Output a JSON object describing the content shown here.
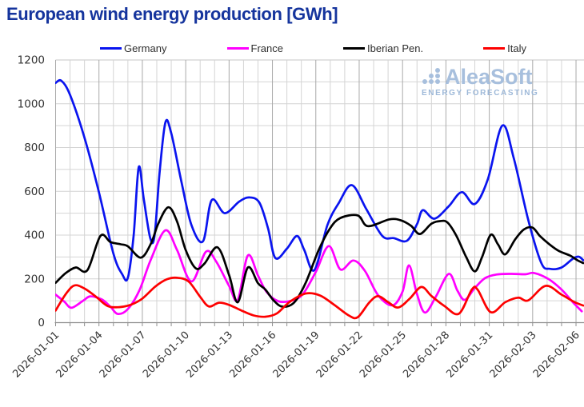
{
  "title": "European wind energy production [GWh]",
  "watermark": {
    "name": "AleaSoft",
    "tagline": "ENERGY FORECASTING",
    "logo_icon": "aleasoft-dots-logo",
    "color": "#a7bfdd"
  },
  "colors": {
    "title": "#15349d",
    "grid_minor": "#d4d4d4",
    "grid_major_x": "#a9a9a9",
    "grid_top": "#c4c4c4",
    "axis_line": "#8f8f8f",
    "tick_label": "#333333"
  },
  "chart_data": {
    "type": "line",
    "title": "European wind energy production [GWh]",
    "xlabel": "",
    "ylabel": "",
    "grid": true,
    "legend_position": "top",
    "x_axis": {
      "day0_date": "2026-01-01",
      "tick_interval_days": 3,
      "minor_grid_interval_days": 1,
      "range_days": [
        0,
        36.5
      ],
      "tick_labels": [
        "2026-01-01",
        "2026-01-04",
        "2026-01-07",
        "2026-01-10",
        "2026-01-13",
        "2026-01-16",
        "2026-01-19",
        "2026-01-22",
        "2026-01-25",
        "2026-01-28",
        "2026-01-31",
        "2026-02-03",
        "2026-02-06"
      ]
    },
    "y_axis": {
      "min": 0,
      "max": 1200,
      "major_tick_step": 200,
      "minor_grid_step": 100,
      "tick_labels": [
        "0",
        "200",
        "400",
        "600",
        "800",
        "1000",
        "1200"
      ]
    },
    "series": [
      {
        "name": "Germany",
        "color": "#0a14ef",
        "points": [
          [
            0,
            1095
          ],
          [
            0.4,
            1105
          ],
          [
            1,
            1040
          ],
          [
            2,
            845
          ],
          [
            3,
            595
          ],
          [
            4,
            315
          ],
          [
            4.6,
            222
          ],
          [
            5,
            205
          ],
          [
            5.4,
            400
          ],
          [
            5.75,
            710
          ],
          [
            6.1,
            565
          ],
          [
            6.55,
            385
          ],
          [
            6.85,
            400
          ],
          [
            7.2,
            690
          ],
          [
            7.6,
            915
          ],
          [
            8,
            865
          ],
          [
            8.7,
            645
          ],
          [
            9.4,
            445
          ],
          [
            10.2,
            372
          ],
          [
            10.8,
            560
          ],
          [
            11.7,
            500
          ],
          [
            12.7,
            553
          ],
          [
            13.4,
            572
          ],
          [
            14.1,
            548
          ],
          [
            14.7,
            430
          ],
          [
            15.2,
            295
          ],
          [
            16,
            338
          ],
          [
            16.7,
            396
          ],
          [
            17.2,
            332
          ],
          [
            17.9,
            240
          ],
          [
            18.8,
            445
          ],
          [
            19.6,
            548
          ],
          [
            20.5,
            628
          ],
          [
            21.5,
            518
          ],
          [
            22.6,
            396
          ],
          [
            23.4,
            386
          ],
          [
            24.3,
            374
          ],
          [
            25,
            450
          ],
          [
            25.4,
            514
          ],
          [
            26.2,
            475
          ],
          [
            27.2,
            532
          ],
          [
            28.1,
            596
          ],
          [
            29,
            542
          ],
          [
            29.9,
            655
          ],
          [
            30.9,
            900
          ],
          [
            31.7,
            750
          ],
          [
            32.7,
            468
          ],
          [
            33.6,
            272
          ],
          [
            34.2,
            246
          ],
          [
            35,
            252
          ],
          [
            35.8,
            293
          ],
          [
            36.2,
            301
          ],
          [
            36.5,
            285
          ]
        ]
      },
      {
        "name": "France",
        "color": "#ff00ff",
        "points": [
          [
            0,
            128
          ],
          [
            0.6,
            96
          ],
          [
            1.1,
            68
          ],
          [
            1.9,
            100
          ],
          [
            2.4,
            120
          ],
          [
            3.2,
            106
          ],
          [
            3.8,
            72
          ],
          [
            4.3,
            40
          ],
          [
            5,
            62
          ],
          [
            5.8,
            148
          ],
          [
            6.6,
            290
          ],
          [
            7.6,
            422
          ],
          [
            8.4,
            332
          ],
          [
            9.4,
            188
          ],
          [
            10.4,
            324
          ],
          [
            11.1,
            280
          ],
          [
            12,
            168
          ],
          [
            12.6,
            104
          ],
          [
            13.3,
            307
          ],
          [
            14,
            215
          ],
          [
            14.6,
            140
          ],
          [
            15.4,
            98
          ],
          [
            16.3,
            100
          ],
          [
            17.1,
            130
          ],
          [
            18,
            232
          ],
          [
            18.9,
            350
          ],
          [
            19.7,
            243
          ],
          [
            20.6,
            284
          ],
          [
            21.4,
            236
          ],
          [
            22.3,
            126
          ],
          [
            23.3,
            79
          ],
          [
            24,
            142
          ],
          [
            24.45,
            262
          ],
          [
            25,
            130
          ],
          [
            25.55,
            46
          ],
          [
            26.3,
            118
          ],
          [
            27.2,
            223
          ],
          [
            27.8,
            146
          ],
          [
            28.3,
            104
          ],
          [
            29,
            158
          ],
          [
            29.7,
            203
          ],
          [
            30.5,
            220
          ],
          [
            31.5,
            223
          ],
          [
            32.5,
            221
          ],
          [
            33.1,
            227
          ],
          [
            34.1,
            199
          ],
          [
            35,
            151
          ],
          [
            35.8,
            92
          ],
          [
            36.4,
            52
          ]
        ]
      },
      {
        "name": "Iberian Pen.",
        "color": "#000000",
        "points": [
          [
            0,
            182
          ],
          [
            0.7,
            226
          ],
          [
            1.4,
            252
          ],
          [
            2.2,
            240
          ],
          [
            3.1,
            396
          ],
          [
            3.8,
            368
          ],
          [
            4.5,
            358
          ],
          [
            5,
            349
          ],
          [
            5.9,
            297
          ],
          [
            6.6,
            362
          ],
          [
            7.1,
            452
          ],
          [
            7.8,
            527
          ],
          [
            8.4,
            462
          ],
          [
            9,
            332
          ],
          [
            9.7,
            248
          ],
          [
            10.3,
            270
          ],
          [
            11.2,
            344
          ],
          [
            12,
            218
          ],
          [
            12.6,
            93
          ],
          [
            13.3,
            252
          ],
          [
            14,
            180
          ],
          [
            14.5,
            152
          ],
          [
            15.1,
            100
          ],
          [
            15.7,
            73
          ],
          [
            16.5,
            92
          ],
          [
            17.3,
            182
          ],
          [
            18.2,
            332
          ],
          [
            19,
            432
          ],
          [
            19.7,
            478
          ],
          [
            20.9,
            490
          ],
          [
            21.6,
            441
          ],
          [
            23.1,
            472
          ],
          [
            23.9,
            467
          ],
          [
            24.6,
            442
          ],
          [
            25.2,
            405
          ],
          [
            26,
            452
          ],
          [
            26.6,
            464
          ],
          [
            27.1,
            458
          ],
          [
            27.7,
            400
          ],
          [
            28.4,
            300
          ],
          [
            29,
            234
          ],
          [
            29.5,
            300
          ],
          [
            30.1,
            401
          ],
          [
            30.6,
            358
          ],
          [
            31.1,
            312
          ],
          [
            31.8,
            381
          ],
          [
            32.4,
            426
          ],
          [
            33,
            434
          ],
          [
            33.5,
            396
          ],
          [
            34.1,
            361
          ],
          [
            34.8,
            328
          ],
          [
            35.6,
            306
          ],
          [
            36.1,
            285
          ],
          [
            36.5,
            272
          ]
        ]
      },
      {
        "name": "Italy",
        "color": "#fd0000",
        "points": [
          [
            0,
            55
          ],
          [
            0.7,
            130
          ],
          [
            1.3,
            170
          ],
          [
            2,
            156
          ],
          [
            2.8,
            118
          ],
          [
            3.6,
            76
          ],
          [
            4.4,
            71
          ],
          [
            5.2,
            82
          ],
          [
            6,
            110
          ],
          [
            6.9,
            165
          ],
          [
            7.7,
            198
          ],
          [
            8.4,
            205
          ],
          [
            9.2,
            188
          ],
          [
            10,
            118
          ],
          [
            10.6,
            74
          ],
          [
            11.3,
            91
          ],
          [
            12,
            81
          ],
          [
            12.9,
            54
          ],
          [
            13.7,
            33
          ],
          [
            14.5,
            27
          ],
          [
            15.3,
            42
          ],
          [
            16.2,
            95
          ],
          [
            17.3,
            133
          ],
          [
            18.3,
            124
          ],
          [
            19.3,
            80
          ],
          [
            20.3,
            32
          ],
          [
            20.9,
            25
          ],
          [
            21.7,
            92
          ],
          [
            22.3,
            121
          ],
          [
            23,
            94
          ],
          [
            23.7,
            69
          ],
          [
            24.5,
            110
          ],
          [
            25.3,
            163
          ],
          [
            26,
            122
          ],
          [
            26.9,
            76
          ],
          [
            27.9,
            41
          ],
          [
            28.8,
            152
          ],
          [
            29.2,
            150
          ],
          [
            30.1,
            48
          ],
          [
            31.1,
            93
          ],
          [
            32,
            114
          ],
          [
            32.7,
            102
          ],
          [
            33.9,
            168
          ],
          [
            35,
            128
          ],
          [
            35.9,
            94
          ],
          [
            36.5,
            78
          ]
        ]
      }
    ]
  }
}
